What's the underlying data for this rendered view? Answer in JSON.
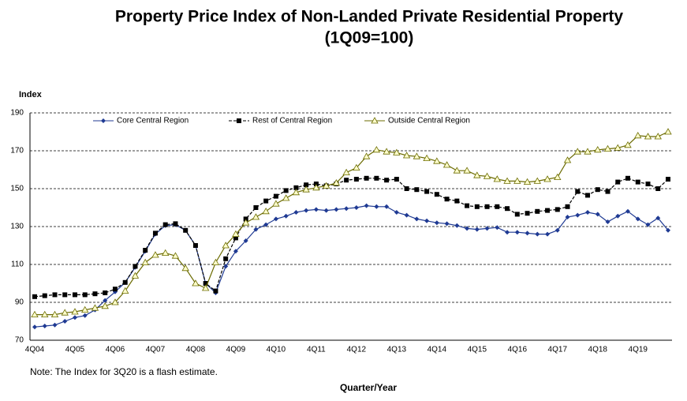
{
  "chart_data": {
    "type": "line",
    "title": "Property Price Index of Non-Landed Private Residential Property",
    "subtitle": "(1Q09=100)",
    "y_label": "Index",
    "x_label": "Quarter/Year",
    "note": "Note: The Index for 3Q20 is a flash estimate.",
    "categories": [
      "4Q04",
      null,
      null,
      null,
      "4Q05",
      null,
      null,
      null,
      "4Q06",
      null,
      null,
      null,
      "4Q07",
      null,
      null,
      null,
      "4Q08",
      null,
      null,
      null,
      "4Q09",
      null,
      null,
      null,
      "4Q10",
      null,
      null,
      null,
      "4Q11",
      null,
      null,
      null,
      "4Q12",
      null,
      null,
      null,
      "4Q13",
      null,
      null,
      null,
      "4Q14",
      null,
      null,
      null,
      "4Q15",
      null,
      null,
      null,
      "4Q16",
      null,
      null,
      null,
      "4Q17",
      null,
      null,
      null,
      "4Q18",
      null,
      null,
      null,
      "4Q19",
      null,
      null,
      null
    ],
    "series": [
      {
        "name": "Core Central Region",
        "color": "#1f3a93",
        "marker": "diamond",
        "values": [
          77,
          77.5,
          78,
          80,
          82,
          83,
          86,
          91,
          95.5,
          100.5,
          108.5,
          117,
          126,
          130.5,
          131,
          128,
          120,
          100,
          95,
          109,
          117,
          122.5,
          128.5,
          131,
          134,
          135.5,
          137.5,
          138.5,
          139,
          138.5,
          139,
          139.5,
          140,
          141,
          140.5,
          140.5,
          137.5,
          136,
          134,
          133,
          132,
          131.5,
          130.5,
          129,
          128.5,
          129,
          129.5,
          127,
          127,
          126.5,
          126,
          126,
          128,
          135,
          136,
          137.5,
          136.5,
          132.5,
          135.5,
          138,
          134,
          131,
          134.5,
          128
        ]
      },
      {
        "name": "Rest of Central Region",
        "color": "#000000",
        "marker": "square",
        "dashed": true,
        "values": [
          93,
          93.5,
          94,
          94,
          94,
          94,
          94.5,
          95,
          97,
          100.5,
          109,
          117.5,
          126.5,
          131,
          131.5,
          128,
          120,
          100,
          96,
          113,
          124,
          134,
          140,
          143.5,
          146,
          149,
          150.5,
          152,
          152.5,
          151.5,
          152.5,
          154.5,
          155,
          155.5,
          155.5,
          154.5,
          155,
          150,
          149.5,
          148.5,
          147,
          144.5,
          143.5,
          141,
          140.5,
          140.5,
          140.5,
          139.5,
          136.5,
          137,
          138,
          138.5,
          139,
          140.5,
          148.5,
          146.5,
          149.5,
          148.5,
          153.5,
          155.5,
          153.5,
          152.5,
          150,
          155
        ]
      },
      {
        "name": "Outside Central Region",
        "color": "#6b6b00",
        "marker": "triangle",
        "fill": "#ffffcc",
        "values": [
          83.5,
          83.5,
          83.5,
          84.5,
          85,
          86,
          87,
          88,
          90,
          96,
          104,
          111,
          115,
          116,
          114.5,
          108,
          100,
          97.5,
          111,
          120,
          126,
          132,
          135,
          138,
          142,
          145,
          148,
          149.5,
          150.5,
          151.5,
          153,
          158.5,
          161,
          167,
          170.5,
          169.5,
          169,
          167.5,
          167,
          166,
          164.5,
          162.5,
          159.5,
          159.5,
          157,
          156.5,
          155,
          154,
          154,
          153.5,
          154,
          155,
          156,
          165,
          169.5,
          169.5,
          170.5,
          171,
          171.5,
          173,
          178,
          177.5,
          177.5,
          180
        ]
      }
    ],
    "ylim": [
      70,
      190
    ],
    "yticks": [
      70,
      90,
      110,
      130,
      150,
      170,
      190
    ],
    "grid": true,
    "legend": "top"
  }
}
